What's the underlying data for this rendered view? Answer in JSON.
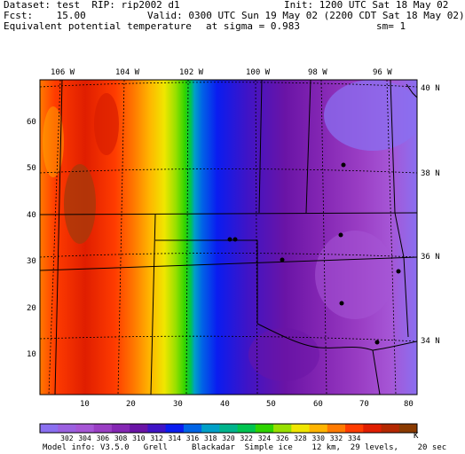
{
  "header": {
    "dataset": "Dataset: test  RIP: rip2002 d1",
    "init": "Init: 1200 UTC Sat 18 May 02",
    "fcst": "Fcst:    15.00",
    "valid": "Valid: 0300 UTC Sun 19 May 02 (2200 CDT Sat 18 May 02)",
    "field": "Equivalent potential temperature",
    "sigma": "at sigma = 0.983",
    "sm": "sm= 1"
  },
  "map": {
    "lon_labels": [
      "106 W",
      "104 W",
      "102 W",
      "100 W",
      "98 W",
      "96 W"
    ],
    "lat_labels": [
      "40 N",
      "38 N",
      "36 N",
      "34 N"
    ],
    "x_ticks": [
      "10",
      "20",
      "30",
      "40",
      "50",
      "60",
      "70",
      "80"
    ],
    "y_ticks": [
      "10",
      "20",
      "30",
      "40",
      "50",
      "60"
    ]
  },
  "legend": {
    "unit": "K",
    "values": [
      "302",
      "304",
      "306",
      "308",
      "310",
      "312",
      "314",
      "316",
      "318",
      "320",
      "322",
      "324",
      "326",
      "328",
      "330",
      "332",
      "334"
    ],
    "colors": [
      "#8a6ff0",
      "#9b60e0",
      "#a656d6",
      "#9a3ec4",
      "#8527b4",
      "#6a14a6",
      "#3f14c6",
      "#0a1cf0",
      "#0064e6",
      "#00a0c8",
      "#00b48c",
      "#00c450",
      "#2ed400",
      "#98e000",
      "#f0e600",
      "#ffb400",
      "#ff7a00",
      "#ff3c00",
      "#e01e00",
      "#b42800",
      "#8a3a00"
    ]
  },
  "footer": "Model info: V3.5.0   Grell     Blackadar  Simple ice    12 km,  29 levels,    20 sec"
}
